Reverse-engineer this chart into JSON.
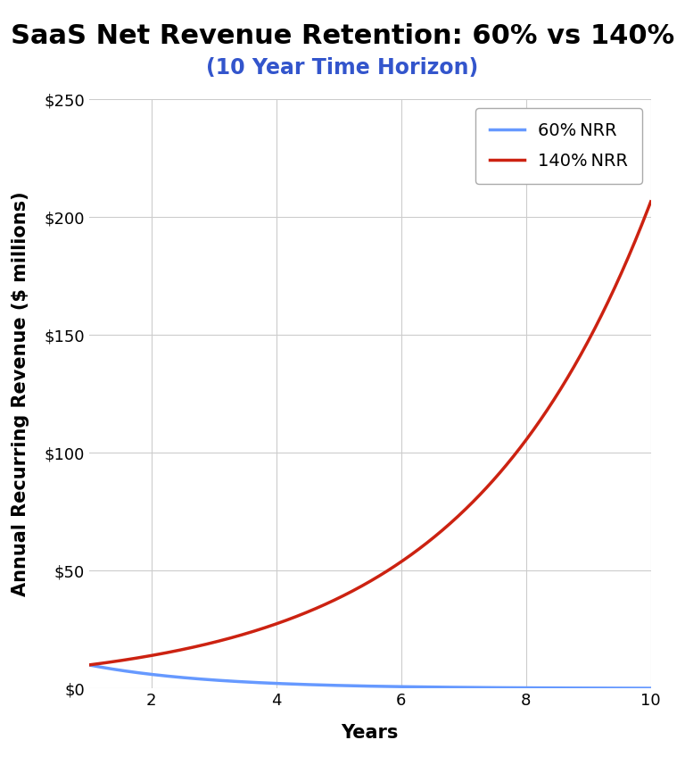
{
  "title": "SaaS Net Revenue Retention: 60% vs 140%",
  "subtitle": "(10 Year Time Horizon)",
  "subtitle_color": "#3355cc",
  "xlabel": "Years",
  "ylabel": "Annual Recurring Revenue ($ millions)",
  "initial_value": 10,
  "nrr_low": 0.6,
  "nrr_high": 1.4,
  "years": 10,
  "color_low": "#6699ff",
  "color_high": "#cc2211",
  "legend_low": "60 NRR",
  "legend_high": "140 NRR",
  "legend_pct_low": "60% NRR",
  "legend_pct_high": "140% NRR",
  "ylim": [
    0,
    250
  ],
  "xlim": [
    1,
    10
  ],
  "xticks": [
    2,
    4,
    6,
    8,
    10
  ],
  "yticks": [
    0,
    50,
    100,
    150,
    200,
    250
  ],
  "line_width": 2.5,
  "background_color": "#ffffff",
  "grid_color": "#cccccc",
  "title_fontsize": 22,
  "subtitle_fontsize": 17,
  "axis_label_fontsize": 15,
  "tick_fontsize": 13,
  "legend_fontsize": 14
}
